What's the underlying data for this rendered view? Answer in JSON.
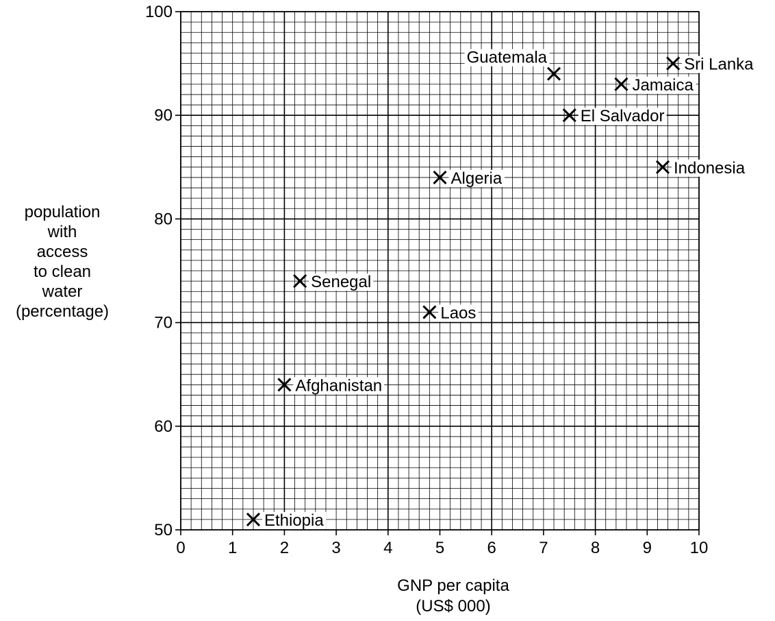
{
  "chart_data": {
    "type": "scatter",
    "xlabel_line1": "GNP per capita",
    "xlabel_line2": "(US$ 000)",
    "ylabel": "population\nwith\naccess\nto clean\nwater\n(percentage)",
    "xlim": [
      0,
      10
    ],
    "ylim": [
      50,
      100
    ],
    "x_ticks": [
      "0",
      "1",
      "2",
      "3",
      "4",
      "5",
      "6",
      "7",
      "8",
      "9",
      "10"
    ],
    "y_ticks": [
      "50",
      "60",
      "70",
      "80",
      "90",
      "100"
    ],
    "grid": true,
    "marker": "x",
    "points": [
      {
        "label": "Ethiopia",
        "x": 1.4,
        "y": 51
      },
      {
        "label": "Afghanistan",
        "x": 2.0,
        "y": 64
      },
      {
        "label": "Senegal",
        "x": 2.3,
        "y": 74
      },
      {
        "label": "Laos",
        "x": 4.8,
        "y": 71
      },
      {
        "label": "Algeria",
        "x": 5.0,
        "y": 84
      },
      {
        "label": "Guatemala",
        "x": 7.2,
        "y": 94
      },
      {
        "label": "El Salvador",
        "x": 7.5,
        "y": 90
      },
      {
        "label": "Jamaica",
        "x": 8.5,
        "y": 93
      },
      {
        "label": "Indonesia",
        "x": 9.3,
        "y": 85
      },
      {
        "label": "Sri Lanka",
        "x": 9.5,
        "y": 95
      }
    ]
  }
}
